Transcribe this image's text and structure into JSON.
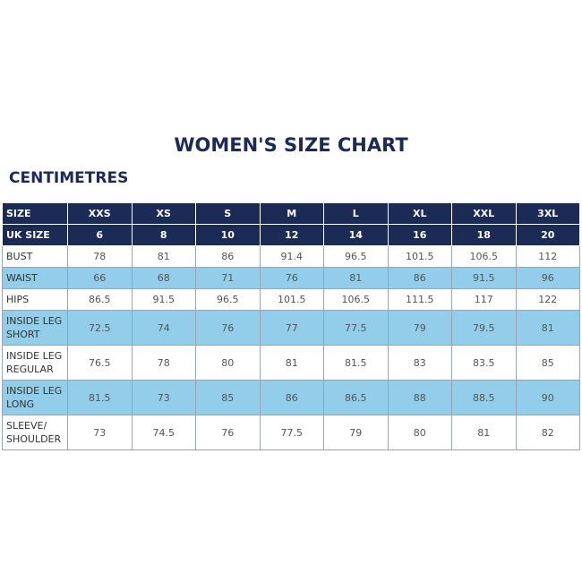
{
  "header": {
    "title": "WOMEN'S SIZE CHART",
    "subtitle": "CENTIMETRES"
  },
  "table": {
    "head": [
      [
        "SIZE",
        "XXS",
        "XS",
        "S",
        "M",
        "L",
        "XL",
        "XXL",
        "3XL"
      ],
      [
        "UK SIZE",
        6,
        8,
        10,
        12,
        14,
        16,
        18,
        20
      ]
    ],
    "rows": [
      [
        "BUST",
        78,
        81,
        86,
        91.4,
        96.5,
        101.5,
        106.5,
        112
      ],
      [
        "WAIST",
        66,
        68,
        71,
        76,
        81,
        86,
        91.5,
        96
      ],
      [
        "HIPS",
        86.5,
        91.5,
        96.5,
        101.5,
        106.5,
        111.5,
        117,
        122
      ],
      [
        "INSIDE LEG SHORT",
        72.5,
        74,
        76,
        77,
        77.5,
        79,
        79.5,
        81
      ],
      [
        "INSIDE LEG REGULAR",
        76.5,
        78,
        80,
        81,
        81.5,
        83,
        83.5,
        85
      ],
      [
        "INSIDE LEG LONG",
        81.5,
        73,
        85,
        86,
        86.5,
        88,
        88.5,
        90
      ],
      [
        "SLEEVE/ SHOULDER",
        73,
        74.5,
        76,
        77.5,
        79,
        80,
        81,
        82
      ]
    ]
  }
}
